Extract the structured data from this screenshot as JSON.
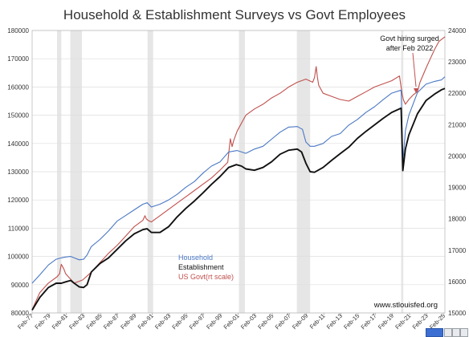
{
  "colors": {
    "household": "#4a78c4",
    "establishment": "#111111",
    "us_govt": "#c0504d",
    "recession": "#e6e6e6"
  },
  "chart_data": {
    "type": "line",
    "title": "Household & Establishment Surveys vs Govt Employees",
    "source": "www.stlouisfed.org",
    "annotation": [
      "Govt hiring surged",
      "after Feb 2022"
    ],
    "legend": {
      "placement": "bottom-left",
      "entries": [
        "Household",
        "Establishment",
        "US Govt(rt scale)"
      ]
    },
    "grid": true,
    "xlim": [
      1977.1,
      2025.2
    ],
    "ylim_left": [
      80000,
      180000
    ],
    "ylim_right": [
      15000,
      24000
    ],
    "y_ticks_left": [
      "80000",
      "90000",
      "100000",
      "110000",
      "120000",
      "130000",
      "140000",
      "150000",
      "160000",
      "170000",
      "180000"
    ],
    "y_ticks_right": [
      "15000",
      "16000",
      "17000",
      "18000",
      "19000",
      "20000",
      "21000",
      "22000",
      "23000",
      "24000"
    ],
    "x_ticks": [
      "Feb-77",
      "Feb-79",
      "Feb-81",
      "Feb-83",
      "Feb-85",
      "Feb-87",
      "Feb-89",
      "Feb-91",
      "Feb-93",
      "Feb-95",
      "Feb-97",
      "Feb-99",
      "Feb-01",
      "Feb-03",
      "Feb-05",
      "Feb-07",
      "Feb-09",
      "Feb-11",
      "Feb-13",
      "Feb-15",
      "Feb-17",
      "Feb-19",
      "Feb-21",
      "Feb-23",
      "Feb-25"
    ],
    "recessions": [
      [
        1980.0,
        1980.5
      ],
      [
        1981.55,
        1982.9
      ],
      [
        1990.55,
        1991.2
      ],
      [
        2001.2,
        2001.9
      ],
      [
        2007.95,
        2009.5
      ],
      [
        2020.1,
        2020.35
      ]
    ],
    "series": [
      {
        "name": "Household",
        "axis": "left",
        "x": [
          1977.1,
          1978,
          1979,
          1979.9,
          1980.5,
          1981,
          1981.6,
          1982,
          1982.6,
          1983.1,
          1983.5,
          1984,
          1985,
          1986,
          1987,
          1988,
          1989,
          1990,
          1990.5,
          1991,
          1992,
          1993,
          1994,
          1995,
          1996,
          1997,
          1998,
          1999,
          2000,
          2001,
          2002,
          2003,
          2004,
          2005,
          2006,
          2007,
          2008,
          2008.6,
          2009,
          2009.5,
          2010,
          2011,
          2012,
          2013,
          2014,
          2015,
          2016,
          2017,
          2018,
          2019,
          2020.1,
          2020.3,
          2020.6,
          2021,
          2022,
          2023,
          2024,
          2024.8,
          2025.2
        ],
        "y": [
          90500,
          93500,
          97000,
          99000,
          99500,
          99800,
          100000,
          99500,
          98800,
          99000,
          100500,
          103500,
          106000,
          109000,
          112500,
          114500,
          116500,
          118500,
          119000,
          117500,
          118500,
          120000,
          122000,
          124500,
          126500,
          129500,
          132000,
          133500,
          137000,
          137500,
          136500,
          138000,
          139000,
          141500,
          144000,
          145800,
          146000,
          145000,
          140500,
          139000,
          139000,
          140000,
          142500,
          143500,
          146500,
          148500,
          151000,
          153000,
          155500,
          157800,
          158900,
          133000,
          144500,
          150000,
          158000,
          161000,
          162000,
          162500,
          163600
        ]
      },
      {
        "name": "Establishment",
        "axis": "left",
        "x": [
          1977.1,
          1978,
          1979,
          1979.9,
          1980.5,
          1981,
          1981.6,
          1982,
          1982.6,
          1983.1,
          1983.5,
          1984,
          1985,
          1986,
          1987,
          1988,
          1989,
          1990,
          1990.5,
          1991,
          1992,
          1993,
          1994,
          1995,
          1996,
          1997,
          1998,
          1999,
          2000,
          2000.9,
          2001.5,
          2002,
          2003,
          2004,
          2005,
          2006,
          2007,
          2008,
          2008.5,
          2009,
          2009.5,
          2010,
          2011,
          2012,
          2013,
          2014,
          2015,
          2016,
          2017,
          2018,
          2019,
          2020.1,
          2020.3,
          2020.6,
          2021,
          2022,
          2023,
          2024,
          2024.8,
          2025.2
        ],
        "y": [
          81000,
          85500,
          89000,
          90500,
          90500,
          91000,
          91500,
          90500,
          89200,
          89000,
          90000,
          94500,
          97500,
          99500,
          102500,
          105500,
          108000,
          109500,
          109800,
          108500,
          108500,
          110500,
          114000,
          117000,
          119600,
          122500,
          125500,
          128300,
          131500,
          132500,
          132000,
          131000,
          130500,
          131500,
          133500,
          136200,
          137600,
          138000,
          137000,
          133000,
          130000,
          129800,
          131500,
          134000,
          136400,
          138700,
          141800,
          144300,
          146600,
          148900,
          151000,
          152500,
          130400,
          138000,
          143000,
          150500,
          155200,
          157500,
          159000,
          159500
        ]
      },
      {
        "name": "US Govt(rt scale)",
        "axis": "right",
        "x": [
          1977.1,
          1977.5,
          1978,
          1979,
          1980,
          1980.3,
          1980.5,
          1980.8,
          1981,
          1981.5,
          1982,
          1982.5,
          1983,
          1984,
          1985,
          1986,
          1987,
          1988,
          1989,
          1990,
          1990.25,
          1990.4,
          1990.6,
          1991,
          1992,
          1993,
          1994,
          1995,
          1996,
          1997,
          1998,
          1999,
          1999.9,
          2000.2,
          2000.4,
          2000.6,
          2001,
          2002,
          2003,
          2004,
          2005,
          2006,
          2007,
          2008,
          2009,
          2009.8,
          2010,
          2010.2,
          2010.35,
          2010.5,
          2011,
          2012,
          2013,
          2014,
          2015,
          2016,
          2017,
          2018,
          2019,
          2019.9,
          2020.2,
          2020.35,
          2020.6,
          2021,
          2021.5,
          2022,
          2022.3,
          2023,
          2023.5,
          2024,
          2024.5,
          2025.2
        ],
        "y": [
          15100,
          15350,
          15650,
          15950,
          16150,
          16250,
          16550,
          16400,
          16250,
          16100,
          15950,
          16000,
          16050,
          16300,
          16600,
          16900,
          17150,
          17450,
          17750,
          17950,
          18100,
          18000,
          17950,
          17900,
          18100,
          18300,
          18500,
          18700,
          18900,
          19100,
          19300,
          19550,
          19800,
          20550,
          20300,
          20500,
          20800,
          21300,
          21500,
          21650,
          21850,
          22000,
          22200,
          22350,
          22450,
          22350,
          22500,
          22850,
          22500,
          22250,
          22000,
          21900,
          21800,
          21750,
          21900,
          22050,
          22200,
          22300,
          22400,
          22550,
          22000,
          21800,
          21650,
          21800,
          21950,
          22050,
          22350,
          22800,
          23100,
          23400,
          23650,
          23800
        ]
      }
    ]
  }
}
